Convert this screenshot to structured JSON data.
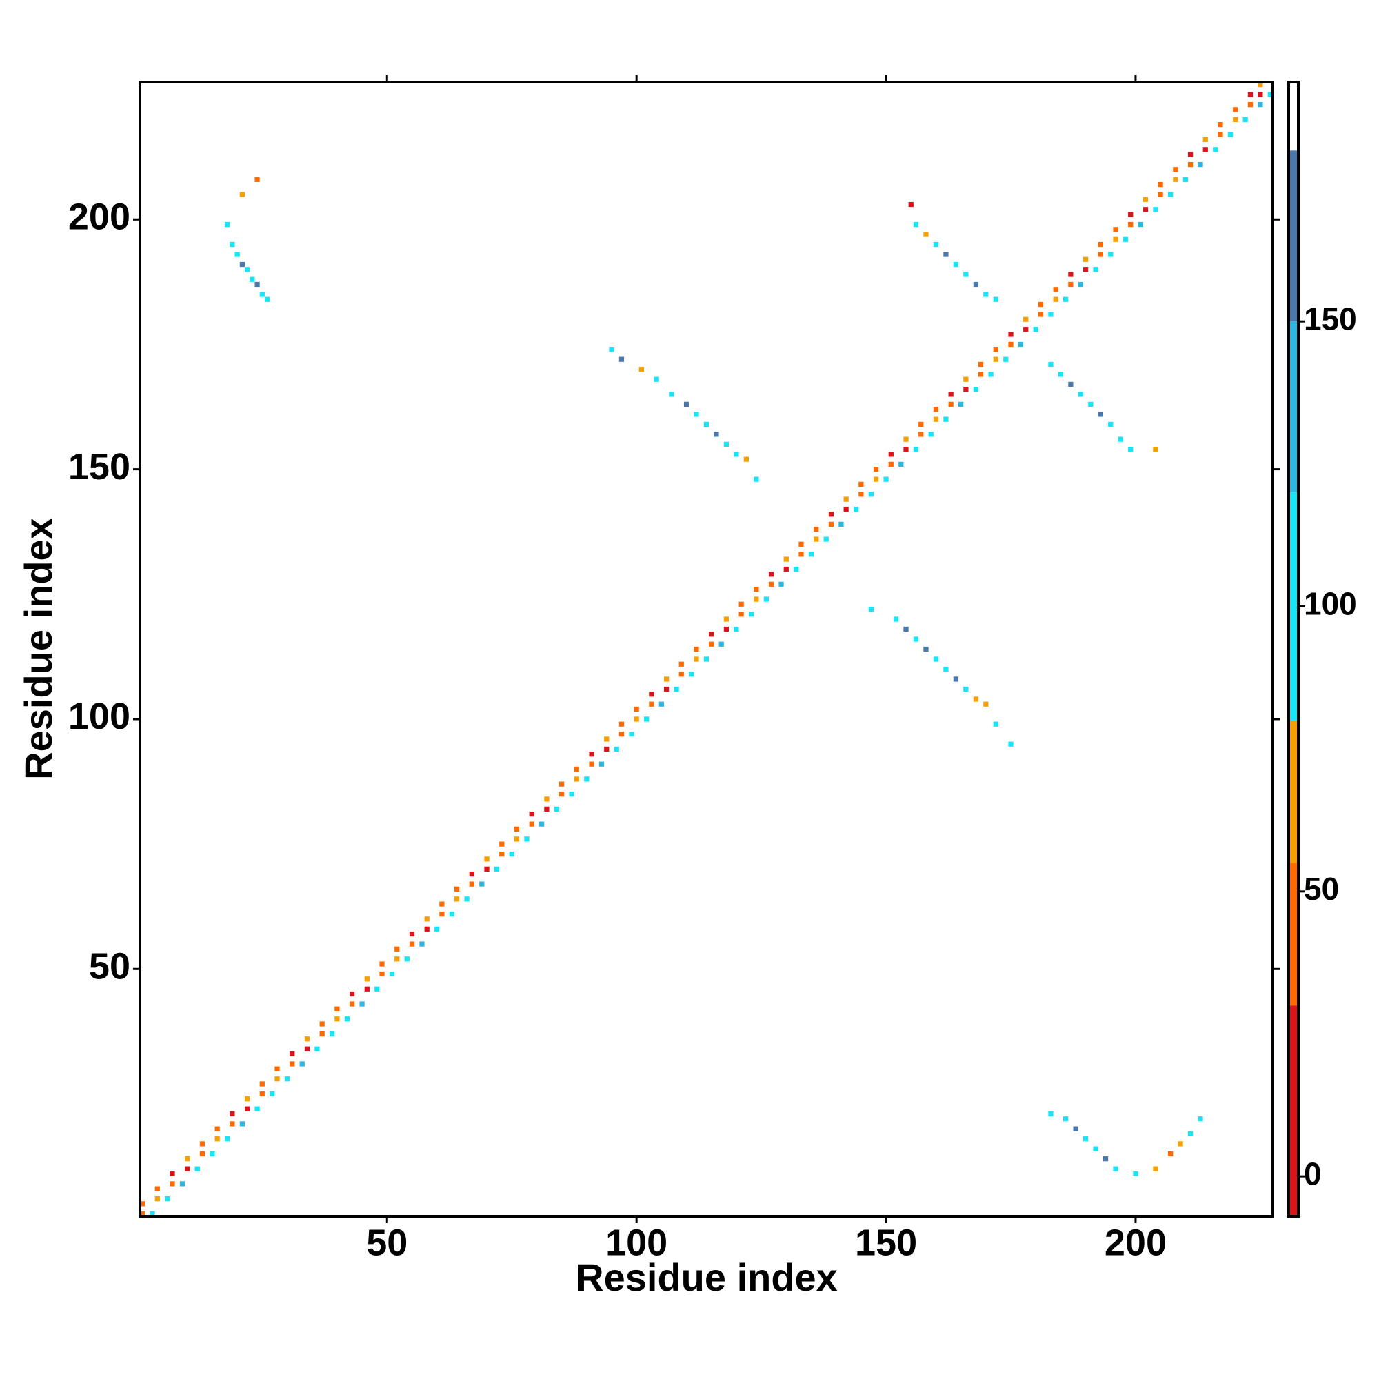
{
  "chart_data": {
    "type": "heatmap",
    "x_label": "Residue index",
    "y_label": "Residue index",
    "xlim": [
      0.5,
      227.5
    ],
    "ylim": [
      0.5,
      227.5
    ],
    "xticks": [
      50,
      100,
      150,
      200
    ],
    "yticks": [
      50,
      100,
      150,
      200
    ],
    "colorbar": {
      "lim": [
        -7,
        192
      ],
      "ticks": [
        0,
        50,
        100,
        150
      ],
      "bounds": [
        -7,
        30,
        55,
        80,
        120,
        150,
        180,
        192
      ],
      "colors": [
        "#d9141b",
        "#ff6a00",
        "#f5a000",
        "#19e3f5",
        "#2cb6e0",
        "#4a78ad",
        "#ffffff"
      ]
    },
    "cells": [
      [
        1,
        1,
        40
      ],
      [
        3,
        1,
        95
      ],
      [
        1,
        3,
        30
      ],
      [
        4,
        4,
        62
      ],
      [
        6,
        4,
        100
      ],
      [
        4,
        6,
        45
      ],
      [
        7,
        7,
        40
      ],
      [
        9,
        7,
        120
      ],
      [
        7,
        9,
        15
      ],
      [
        10,
        10,
        25
      ],
      [
        12,
        10,
        95
      ],
      [
        10,
        12,
        60
      ],
      [
        13,
        13,
        40
      ],
      [
        15,
        13,
        95
      ],
      [
        13,
        15,
        30
      ],
      [
        16,
        16,
        62
      ],
      [
        18,
        16,
        100
      ],
      [
        16,
        18,
        45
      ],
      [
        19,
        19,
        40
      ],
      [
        21,
        19,
        120
      ],
      [
        19,
        21,
        15
      ],
      [
        22,
        22,
        25
      ],
      [
        24,
        22,
        95
      ],
      [
        22,
        24,
        60
      ],
      [
        25,
        25,
        40
      ],
      [
        27,
        25,
        95
      ],
      [
        25,
        27,
        30
      ],
      [
        28,
        28,
        62
      ],
      [
        30,
        28,
        100
      ],
      [
        28,
        30,
        45
      ],
      [
        31,
        31,
        40
      ],
      [
        33,
        31,
        120
      ],
      [
        31,
        33,
        15
      ],
      [
        34,
        34,
        25
      ],
      [
        36,
        34,
        95
      ],
      [
        34,
        36,
        60
      ],
      [
        37,
        37,
        40
      ],
      [
        39,
        37,
        95
      ],
      [
        37,
        39,
        30
      ],
      [
        40,
        40,
        62
      ],
      [
        42,
        40,
        100
      ],
      [
        40,
        42,
        45
      ],
      [
        43,
        43,
        40
      ],
      [
        45,
        43,
        120
      ],
      [
        43,
        45,
        15
      ],
      [
        46,
        46,
        25
      ],
      [
        48,
        46,
        95
      ],
      [
        46,
        48,
        60
      ],
      [
        49,
        49,
        40
      ],
      [
        51,
        49,
        95
      ],
      [
        49,
        51,
        30
      ],
      [
        52,
        52,
        62
      ],
      [
        54,
        52,
        100
      ],
      [
        52,
        54,
        45
      ],
      [
        55,
        55,
        40
      ],
      [
        57,
        55,
        120
      ],
      [
        55,
        57,
        15
      ],
      [
        58,
        58,
        25
      ],
      [
        60,
        58,
        95
      ],
      [
        58,
        60,
        60
      ],
      [
        61,
        61,
        40
      ],
      [
        63,
        61,
        95
      ],
      [
        61,
        63,
        30
      ],
      [
        64,
        64,
        62
      ],
      [
        66,
        64,
        100
      ],
      [
        64,
        66,
        45
      ],
      [
        67,
        67,
        40
      ],
      [
        69,
        67,
        120
      ],
      [
        67,
        69,
        15
      ],
      [
        70,
        70,
        25
      ],
      [
        72,
        70,
        95
      ],
      [
        70,
        72,
        60
      ],
      [
        73,
        73,
        40
      ],
      [
        75,
        73,
        95
      ],
      [
        73,
        75,
        30
      ],
      [
        76,
        76,
        62
      ],
      [
        78,
        76,
        100
      ],
      [
        76,
        78,
        45
      ],
      [
        79,
        79,
        40
      ],
      [
        81,
        79,
        120
      ],
      [
        79,
        81,
        15
      ],
      [
        82,
        82,
        25
      ],
      [
        84,
        82,
        95
      ],
      [
        82,
        84,
        60
      ],
      [
        85,
        85,
        40
      ],
      [
        87,
        85,
        95
      ],
      [
        85,
        87,
        30
      ],
      [
        88,
        88,
        62
      ],
      [
        90,
        88,
        100
      ],
      [
        88,
        90,
        45
      ],
      [
        91,
        91,
        40
      ],
      [
        93,
        91,
        120
      ],
      [
        91,
        93,
        15
      ],
      [
        94,
        94,
        25
      ],
      [
        96,
        94,
        95
      ],
      [
        94,
        96,
        60
      ],
      [
        97,
        97,
        40
      ],
      [
        99,
        97,
        95
      ],
      [
        97,
        99,
        30
      ],
      [
        100,
        100,
        62
      ],
      [
        102,
        100,
        100
      ],
      [
        100,
        102,
        45
      ],
      [
        103,
        103,
        40
      ],
      [
        105,
        103,
        120
      ],
      [
        103,
        105,
        15
      ],
      [
        106,
        106,
        25
      ],
      [
        108,
        106,
        95
      ],
      [
        106,
        108,
        60
      ],
      [
        109,
        109,
        40
      ],
      [
        111,
        109,
        95
      ],
      [
        109,
        111,
        30
      ],
      [
        112,
        112,
        62
      ],
      [
        114,
        112,
        100
      ],
      [
        112,
        114,
        45
      ],
      [
        115,
        115,
        40
      ],
      [
        117,
        115,
        120
      ],
      [
        115,
        117,
        15
      ],
      [
        118,
        118,
        25
      ],
      [
        120,
        118,
        95
      ],
      [
        118,
        120,
        60
      ],
      [
        121,
        121,
        40
      ],
      [
        123,
        121,
        95
      ],
      [
        121,
        123,
        30
      ],
      [
        124,
        124,
        62
      ],
      [
        126,
        124,
        100
      ],
      [
        124,
        126,
        45
      ],
      [
        127,
        127,
        40
      ],
      [
        129,
        127,
        120
      ],
      [
        127,
        129,
        15
      ],
      [
        130,
        130,
        25
      ],
      [
        132,
        130,
        95
      ],
      [
        130,
        132,
        60
      ],
      [
        133,
        133,
        40
      ],
      [
        135,
        133,
        95
      ],
      [
        133,
        135,
        30
      ],
      [
        136,
        136,
        62
      ],
      [
        138,
        136,
        100
      ],
      [
        136,
        138,
        45
      ],
      [
        139,
        139,
        40
      ],
      [
        141,
        139,
        120
      ],
      [
        139,
        141,
        15
      ],
      [
        142,
        142,
        25
      ],
      [
        144,
        142,
        95
      ],
      [
        142,
        144,
        60
      ],
      [
        145,
        145,
        40
      ],
      [
        147,
        145,
        95
      ],
      [
        145,
        147,
        30
      ],
      [
        148,
        148,
        62
      ],
      [
        150,
        148,
        100
      ],
      [
        148,
        150,
        45
      ],
      [
        151,
        151,
        40
      ],
      [
        153,
        151,
        120
      ],
      [
        151,
        153,
        15
      ],
      [
        154,
        154,
        25
      ],
      [
        156,
        154,
        95
      ],
      [
        154,
        156,
        60
      ],
      [
        157,
        157,
        40
      ],
      [
        159,
        157,
        95
      ],
      [
        157,
        159,
        30
      ],
      [
        160,
        160,
        62
      ],
      [
        162,
        160,
        100
      ],
      [
        160,
        162,
        45
      ],
      [
        163,
        163,
        40
      ],
      [
        165,
        163,
        120
      ],
      [
        163,
        165,
        15
      ],
      [
        166,
        166,
        25
      ],
      [
        168,
        166,
        95
      ],
      [
        166,
        168,
        60
      ],
      [
        169,
        169,
        40
      ],
      [
        171,
        169,
        95
      ],
      [
        169,
        171,
        30
      ],
      [
        172,
        172,
        62
      ],
      [
        174,
        172,
        100
      ],
      [
        172,
        174,
        45
      ],
      [
        175,
        175,
        40
      ],
      [
        177,
        175,
        120
      ],
      [
        175,
        177,
        15
      ],
      [
        178,
        178,
        25
      ],
      [
        180,
        178,
        95
      ],
      [
        178,
        180,
        60
      ],
      [
        181,
        181,
        40
      ],
      [
        183,
        181,
        95
      ],
      [
        181,
        183,
        30
      ],
      [
        184,
        184,
        62
      ],
      [
        186,
        184,
        100
      ],
      [
        184,
        186,
        45
      ],
      [
        187,
        187,
        40
      ],
      [
        189,
        187,
        120
      ],
      [
        187,
        189,
        15
      ],
      [
        190,
        190,
        25
      ],
      [
        192,
        190,
        95
      ],
      [
        190,
        192,
        60
      ],
      [
        193,
        193,
        40
      ],
      [
        195,
        193,
        95
      ],
      [
        193,
        195,
        30
      ],
      [
        196,
        196,
        62
      ],
      [
        198,
        196,
        100
      ],
      [
        196,
        198,
        45
      ],
      [
        199,
        199,
        40
      ],
      [
        201,
        199,
        120
      ],
      [
        199,
        201,
        15
      ],
      [
        202,
        202,
        25
      ],
      [
        204,
        202,
        95
      ],
      [
        202,
        204,
        60
      ],
      [
        205,
        205,
        40
      ],
      [
        207,
        205,
        95
      ],
      [
        205,
        207,
        30
      ],
      [
        208,
        208,
        62
      ],
      [
        210,
        208,
        100
      ],
      [
        208,
        210,
        45
      ],
      [
        211,
        211,
        40
      ],
      [
        213,
        211,
        120
      ],
      [
        211,
        213,
        15
      ],
      [
        214,
        214,
        25
      ],
      [
        216,
        214,
        95
      ],
      [
        214,
        216,
        60
      ],
      [
        217,
        217,
        40
      ],
      [
        219,
        217,
        95
      ],
      [
        217,
        219,
        30
      ],
      [
        220,
        220,
        62
      ],
      [
        222,
        220,
        100
      ],
      [
        220,
        222,
        45
      ],
      [
        223,
        223,
        40
      ],
      [
        225,
        223,
        120
      ],
      [
        223,
        225,
        15
      ],
      [
        225,
        225,
        25
      ],
      [
        227,
        225,
        95
      ],
      [
        225,
        227,
        60
      ],
      [
        20,
        193,
        100
      ],
      [
        21,
        191,
        150
      ],
      [
        22,
        190,
        100
      ],
      [
        23,
        188,
        100
      ],
      [
        24,
        187,
        150
      ],
      [
        25,
        185,
        100
      ],
      [
        26,
        184,
        100
      ],
      [
        19,
        195,
        100
      ],
      [
        21,
        205,
        60
      ],
      [
        24,
        208,
        40
      ],
      [
        18,
        199,
        100
      ],
      [
        95,
        174,
        100
      ],
      [
        97,
        172,
        150
      ],
      [
        101,
        170,
        60
      ],
      [
        104,
        168,
        100
      ],
      [
        107,
        165,
        100
      ],
      [
        110,
        163,
        150
      ],
      [
        112,
        161,
        100
      ],
      [
        114,
        159,
        100
      ],
      [
        116,
        157,
        150
      ],
      [
        118,
        155,
        100
      ],
      [
        120,
        153,
        100
      ],
      [
        122,
        152,
        60
      ],
      [
        124,
        148,
        100
      ],
      [
        155,
        203,
        20
      ],
      [
        156,
        199,
        100
      ],
      [
        158,
        197,
        60
      ],
      [
        160,
        195,
        100
      ],
      [
        162,
        193,
        150
      ],
      [
        164,
        191,
        100
      ],
      [
        166,
        189,
        100
      ],
      [
        168,
        187,
        150
      ],
      [
        170,
        185,
        100
      ],
      [
        172,
        184,
        100
      ],
      [
        183,
        171,
        100
      ],
      [
        185,
        169,
        100
      ],
      [
        187,
        167,
        150
      ],
      [
        189,
        165,
        100
      ],
      [
        191,
        163,
        100
      ],
      [
        193,
        161,
        150
      ],
      [
        195,
        159,
        100
      ],
      [
        197,
        156,
        100
      ],
      [
        199,
        154,
        100
      ],
      [
        204,
        154,
        60
      ],
      [
        147,
        122,
        100
      ],
      [
        152,
        120,
        100
      ],
      [
        154,
        118,
        150
      ],
      [
        156,
        116,
        100
      ],
      [
        158,
        114,
        150
      ],
      [
        160,
        112,
        100
      ],
      [
        162,
        110,
        100
      ],
      [
        164,
        108,
        150
      ],
      [
        166,
        106,
        100
      ],
      [
        168,
        104,
        60
      ],
      [
        170,
        103,
        60
      ],
      [
        172,
        99,
        100
      ],
      [
        175,
        95,
        100
      ],
      [
        183,
        21,
        100
      ],
      [
        186,
        20,
        100
      ],
      [
        188,
        18,
        150
      ],
      [
        190,
        16,
        100
      ],
      [
        192,
        14,
        100
      ],
      [
        194,
        12,
        150
      ],
      [
        196,
        10,
        100
      ],
      [
        200,
        9,
        100
      ],
      [
        204,
        10,
        60
      ],
      [
        207,
        13,
        40
      ],
      [
        209,
        15,
        60
      ],
      [
        211,
        17,
        100
      ],
      [
        213,
        20,
        100
      ]
    ]
  }
}
